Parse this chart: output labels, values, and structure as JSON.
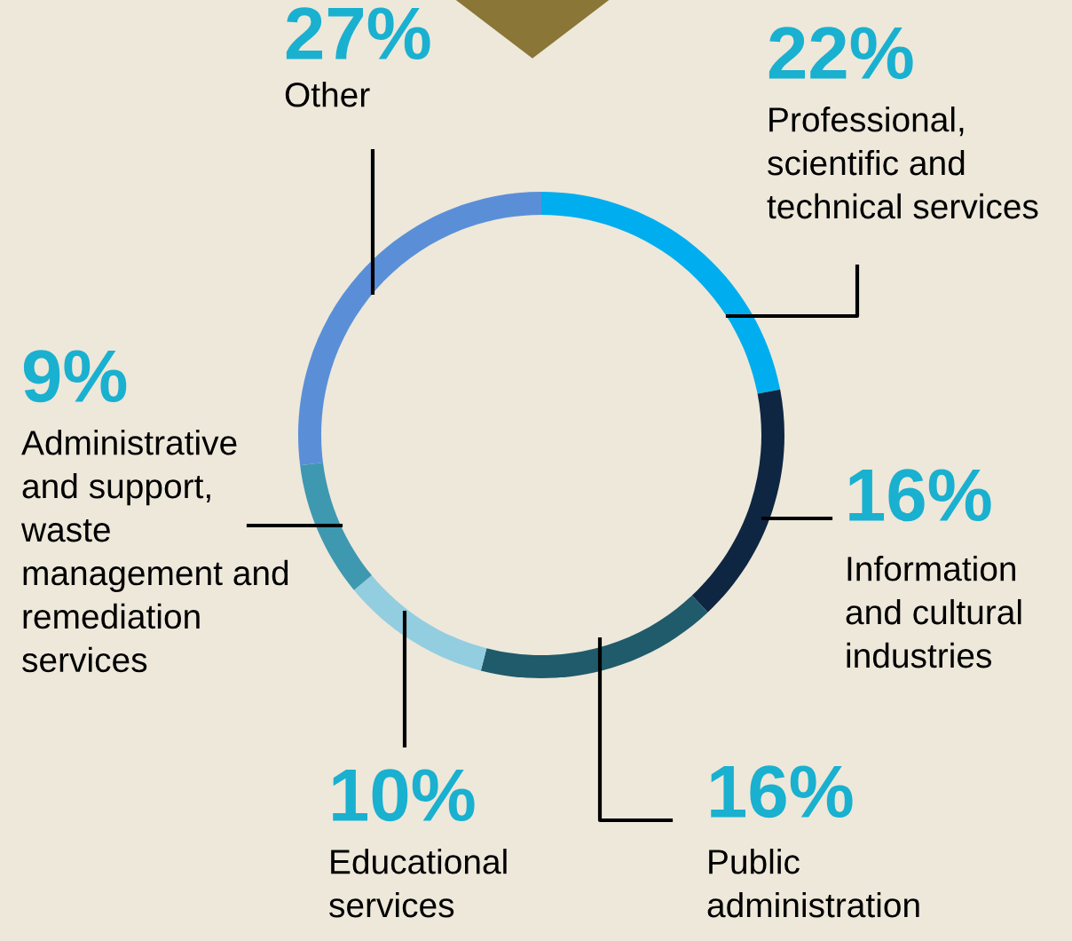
{
  "chart_data": {
    "type": "donut",
    "categories": [
      "Professional,\nscientific and\ntechnical services",
      "Information\nand cultural\nindustries",
      "Public\nadministration",
      "Educational\nservices",
      "Administrative\nand support,\nwaste\nmanagement and\nremediation\nservices",
      "Other"
    ],
    "values": [
      22,
      16,
      16,
      10,
      9,
      27
    ],
    "value_labels": [
      "22%",
      "16%",
      "16%",
      "10%",
      "9%",
      "27%"
    ],
    "colors": [
      "#00aeef",
      "#0f2642",
      "#1f5b6b",
      "#93cde0",
      "#3e98b0",
      "#5a8fd8"
    ],
    "legend": false
  }
}
